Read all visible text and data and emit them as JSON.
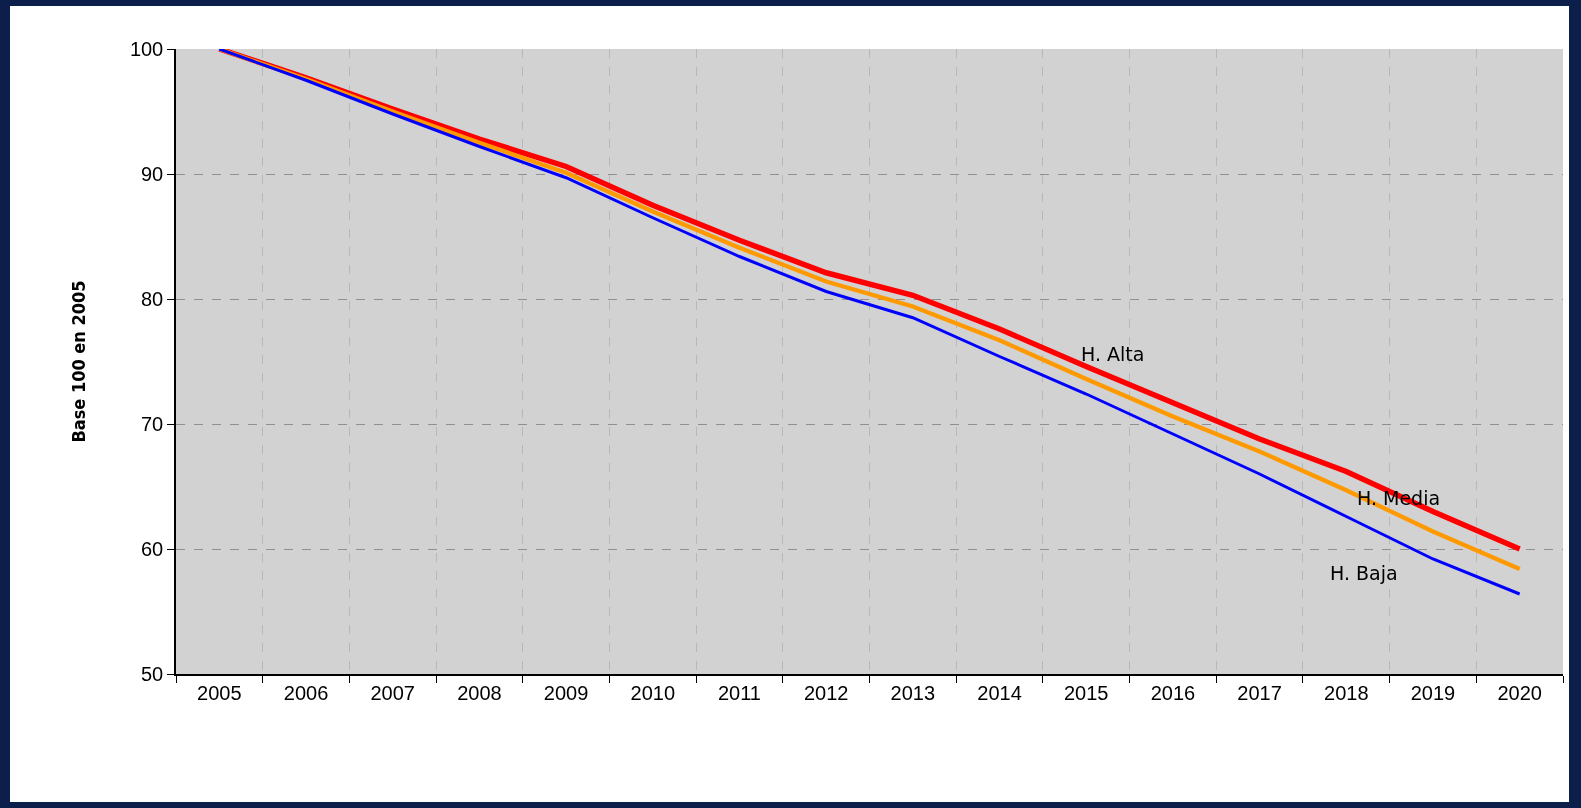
{
  "chart_data": {
    "type": "line",
    "ylabel": "Base 100 en 2005",
    "categories": [
      "2005",
      "2006",
      "2007",
      "2008",
      "2009",
      "2010",
      "2011",
      "2012",
      "2013",
      "2014",
      "2015",
      "2016",
      "2017",
      "2018",
      "2019",
      "2020"
    ],
    "series": [
      {
        "name": "H. Alta",
        "color": "#ff0000",
        "values": [
          100,
          97.7,
          95.2,
          92.8,
          90.6,
          87.5,
          84.7,
          82.1,
          80.3,
          77.6,
          74.6,
          71.7,
          68.8,
          66.2,
          63.0,
          60.0
        ]
      },
      {
        "name": "H. Media",
        "color": "#ff9900",
        "values": [
          100,
          97.6,
          95.0,
          92.5,
          90.1,
          87.0,
          84.1,
          81.4,
          79.4,
          76.7,
          73.6,
          70.6,
          67.8,
          64.7,
          61.4,
          58.4
        ]
      },
      {
        "name": "H. Baja",
        "color": "#0000ff",
        "values": [
          100,
          97.5,
          94.8,
          92.2,
          89.7,
          86.5,
          83.4,
          80.6,
          78.5,
          75.4,
          72.4,
          69.2,
          66.0,
          62.6,
          59.2,
          56.4
        ]
      }
    ],
    "ylim": [
      50,
      100
    ],
    "yticks": [
      50,
      60,
      70,
      80,
      90,
      100
    ],
    "grid": true,
    "legend": false,
    "marker": "none",
    "line_style": "solid"
  }
}
